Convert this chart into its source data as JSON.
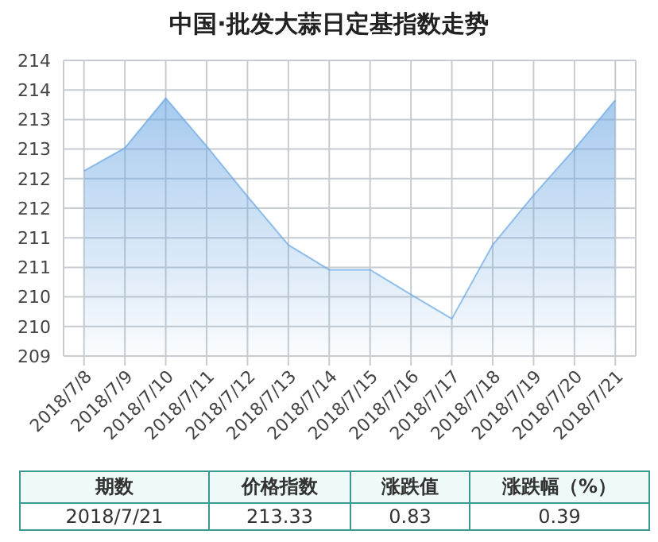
{
  "chart_data": {
    "type": "area",
    "title": "中国·批发大蒜日定基指数走势",
    "categories": [
      "2018/7/8",
      "2018/7/9",
      "2018/7/10",
      "2018/7/11",
      "2018/7/12",
      "2018/7/13",
      "2018/7/14",
      "2018/7/15",
      "2018/7/16",
      "2018/7/17",
      "2018/7/18",
      "2018/7/19",
      "2018/7/20",
      "2018/7/21"
    ],
    "values": [
      212.13,
      212.52,
      213.36,
      212.55,
      211.7,
      210.88,
      210.46,
      210.46,
      210.04,
      209.63,
      210.88,
      211.72,
      212.5,
      213.33
    ],
    "color": "#6aa6e2",
    "ylim": [
      209,
      214
    ],
    "yticks": [
      209,
      {
        "value": 209.5,
        "label": "210"
      },
      210,
      {
        "value": 210.5,
        "label": "211"
      },
      211,
      {
        "value": 211.5,
        "label": "212"
      },
      212,
      {
        "value": 212.5,
        "label": "213"
      },
      213,
      {
        "value": 213.5,
        "label": "214"
      },
      214
    ],
    "grid": true,
    "annotations": [
      "期数",
      "价格指数",
      "涨跌值",
      "涨跌幅（%）",
      "2018/7/21",
      "213.33",
      "0.83",
      "0.39"
    ]
  }
}
